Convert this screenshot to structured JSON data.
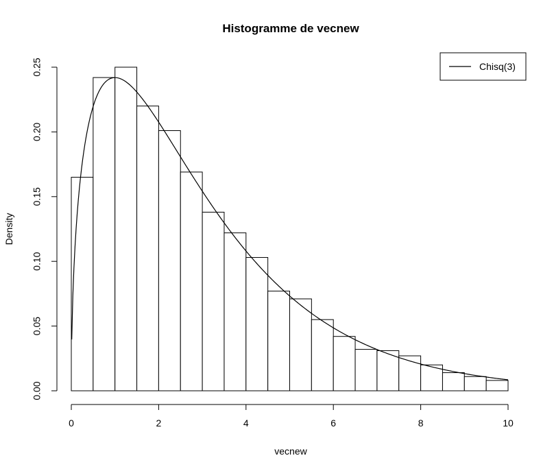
{
  "chart_data": {
    "type": "bar",
    "title": "Histogramme de vecnew",
    "xlabel": "vecnew",
    "ylabel": "Density",
    "xlim": [
      0,
      10
    ],
    "ylim": [
      0,
      0.25
    ],
    "x_ticks": [
      "0",
      "2",
      "4",
      "6",
      "8",
      "10"
    ],
    "x_tick_values": [
      0,
      2,
      4,
      6,
      8,
      10
    ],
    "y_ticks": [
      "0.00",
      "0.05",
      "0.10",
      "0.15",
      "0.20",
      "0.25"
    ],
    "y_tick_values": [
      0,
      0.05,
      0.1,
      0.15,
      0.2,
      0.25
    ],
    "grid": false,
    "bin_edges": [
      0,
      0.5,
      1,
      1.5,
      2,
      2.5,
      3,
      3.5,
      4,
      4.5,
      5,
      5.5,
      6,
      6.5,
      7,
      7.5,
      8,
      8.5,
      9,
      9.5,
      10
    ],
    "values": [
      0.165,
      0.242,
      0.25,
      0.22,
      0.201,
      0.169,
      0.138,
      0.122,
      0.103,
      0.077,
      0.071,
      0.055,
      0.042,
      0.032,
      0.031,
      0.027,
      0.02,
      0.014,
      0.011,
      0.008
    ],
    "overlay": {
      "type": "line",
      "name": "Chisq(3)",
      "distribution": "chi-squared",
      "df": 3,
      "x_range": [
        0.01,
        10
      ]
    },
    "legend": {
      "placement": "top-right",
      "entries": [
        "Chisq(3)"
      ]
    },
    "colors": {
      "bar_fill": "#ffffff",
      "bar_stroke": "#000000",
      "line": "#000000"
    }
  }
}
